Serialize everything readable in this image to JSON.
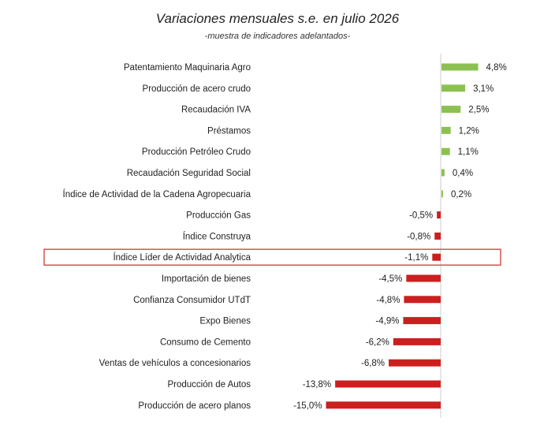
{
  "chart_data": {
    "type": "bar",
    "orientation": "horizontal",
    "title": "Variaciones mensuales s.e. en julio 2026",
    "subtitle": "-muestra de indicadores adelantados-",
    "categories": [
      "Patentamiento Maquinaria Agro",
      "Producción de acero crudo",
      "Recaudación IVA",
      "Préstamos",
      "Producción Petróleo Crudo",
      "Recaudación Seguridad Social",
      "Índice de Actividad de la Cadena Agropecuaria",
      "Producción Gas",
      "Índice Construya",
      "Índice Líder de Actividad Analytica",
      "Importación de bienes",
      "Confianza Consumidor UTdT",
      "Expo Bienes",
      "Consumo de Cemento",
      "Ventas de vehículos a concesionarios",
      "Producción de Autos",
      "Producción de acero planos"
    ],
    "values": [
      4.8,
      3.1,
      2.5,
      1.2,
      1.1,
      0.4,
      0.2,
      -0.5,
      -0.8,
      -1.1,
      -4.5,
      -4.8,
      -4.9,
      -6.2,
      -6.8,
      -13.8,
      -15.0
    ],
    "value_labels": [
      "4,8%",
      "3,1%",
      "2,5%",
      "1,2%",
      "1,1%",
      "0,4%",
      "0,2%",
      "-0,5%",
      "-0,8%",
      "-1,1%",
      "-4,5%",
      "-4,8%",
      "-4,9%",
      "-6,2%",
      "-6,8%",
      "-13,8%",
      "-15,0%"
    ],
    "highlighted_category": "Índice Líder de Actividad Analytica",
    "colors": {
      "positive": "#8cc152",
      "negative": "#cc1f1f",
      "highlight_border": "#d9534f",
      "axis": "#cccccc"
    },
    "grid": false,
    "legend": "none"
  }
}
